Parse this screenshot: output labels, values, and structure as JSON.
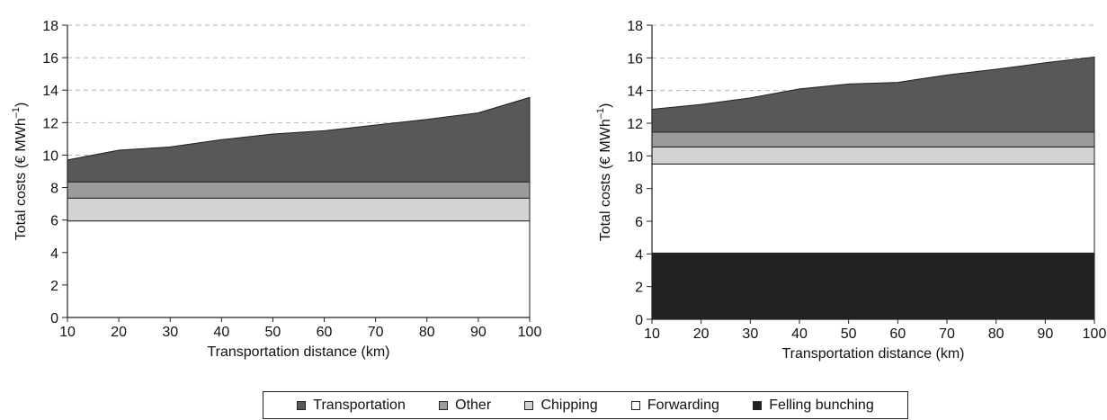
{
  "colors": {
    "Transportation": "#585858",
    "Other": "#9c9c9c",
    "Chipping": "#d3d3d3",
    "Forwarding": "#ffffff",
    "Felling bunching": "#222222",
    "gridline": "#b5b5b5",
    "outline": "#222222"
  },
  "legend": {
    "items": [
      {
        "name": "Transportation",
        "label": "Transportation"
      },
      {
        "name": "Other",
        "label": "Other"
      },
      {
        "name": "Chipping",
        "label": "Chipping"
      },
      {
        "name": "Forwarding",
        "label": "Forwarding"
      },
      {
        "name": "Felling bunching",
        "label": "Felling bunching"
      }
    ]
  },
  "chart_data": [
    {
      "type": "area",
      "stacked": true,
      "title": "",
      "xlabel": "Transportation distance (km)",
      "ylabel": "Total costs (€ MWh",
      "ylabel_superscript": "–1",
      "ylabel_close": ")",
      "x": [
        10,
        20,
        30,
        40,
        50,
        60,
        70,
        80,
        90,
        100
      ],
      "xlim": [
        10,
        100
      ],
      "ylim": [
        0,
        18
      ],
      "yticks": [
        0,
        2,
        4,
        6,
        8,
        10,
        12,
        14,
        16,
        18
      ],
      "grid": "horizontal dashed",
      "series": [
        {
          "name": "Felling bunching",
          "values": [
            0,
            0,
            0,
            0,
            0,
            0,
            0,
            0,
            0,
            0
          ]
        },
        {
          "name": "Forwarding",
          "values": [
            5.95,
            5.95,
            5.95,
            5.95,
            5.95,
            5.95,
            5.95,
            5.95,
            5.95,
            5.95
          ]
        },
        {
          "name": "Chipping",
          "values": [
            1.4,
            1.4,
            1.4,
            1.4,
            1.4,
            1.4,
            1.4,
            1.4,
            1.4,
            1.4
          ]
        },
        {
          "name": "Other",
          "values": [
            1.0,
            1.0,
            1.0,
            1.0,
            1.0,
            1.0,
            1.0,
            1.0,
            1.0,
            1.0
          ]
        },
        {
          "name": "Transportation",
          "values": [
            1.35,
            1.95,
            2.15,
            2.6,
            2.95,
            3.15,
            3.5,
            3.85,
            4.25,
            5.2
          ]
        }
      ]
    },
    {
      "type": "area",
      "stacked": true,
      "title": "",
      "xlabel": "Transportation distance (km)",
      "ylabel": "Total costs (€ MWh",
      "ylabel_superscript": "–1",
      "ylabel_close": ")",
      "x": [
        10,
        20,
        30,
        40,
        50,
        60,
        70,
        80,
        90,
        100
      ],
      "xlim": [
        10,
        100
      ],
      "ylim": [
        0,
        18
      ],
      "yticks": [
        0,
        2,
        4,
        6,
        8,
        10,
        12,
        14,
        16,
        18
      ],
      "grid": "horizontal dashed",
      "series": [
        {
          "name": "Felling bunching",
          "values": [
            4.05,
            4.05,
            4.05,
            4.05,
            4.05,
            4.05,
            4.05,
            4.05,
            4.05,
            4.05
          ]
        },
        {
          "name": "Forwarding",
          "values": [
            5.45,
            5.45,
            5.45,
            5.45,
            5.45,
            5.45,
            5.45,
            5.45,
            5.45,
            5.45
          ]
        },
        {
          "name": "Chipping",
          "values": [
            1.05,
            1.05,
            1.05,
            1.05,
            1.05,
            1.05,
            1.05,
            1.05,
            1.05,
            1.05
          ]
        },
        {
          "name": "Other",
          "values": [
            0.9,
            0.9,
            0.9,
            0.9,
            0.9,
            0.9,
            0.9,
            0.9,
            0.9,
            0.9
          ]
        },
        {
          "name": "Transportation",
          "values": [
            1.4,
            1.7,
            2.1,
            2.65,
            2.95,
            3.05,
            3.5,
            3.85,
            4.25,
            4.6
          ]
        }
      ]
    }
  ]
}
